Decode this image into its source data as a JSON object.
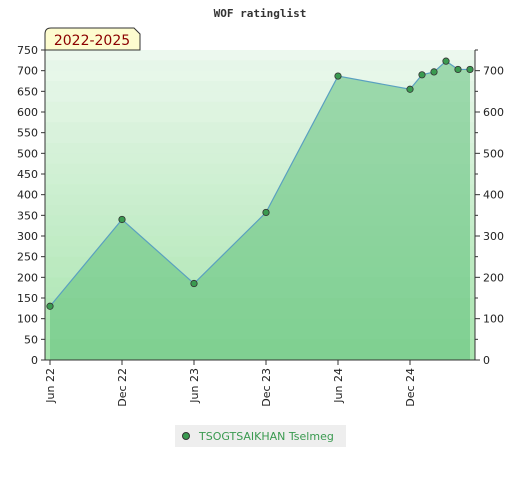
{
  "chart_data": {
    "type": "area",
    "title": "WOF ratinglist",
    "range_badge": "2022-2025",
    "xlabel": "",
    "ylabel": "",
    "ylim": [
      0,
      750
    ],
    "yticks_left": [
      "0",
      "50",
      "100",
      "150",
      "200",
      "250",
      "300",
      "350",
      "400",
      "450",
      "500",
      "550",
      "600",
      "650",
      "700",
      "750"
    ],
    "yticks_right": [
      "0",
      "100",
      "200",
      "300",
      "400",
      "500",
      "600",
      "700"
    ],
    "x_tick_labels": [
      "Jun 22",
      "Dec 22",
      "Jun 23",
      "Dec 23",
      "Jun 24",
      "Dec 24"
    ],
    "x_tick_months": [
      0,
      6,
      12,
      18,
      24,
      30
    ],
    "series": [
      {
        "name": "TSOGTSAIKHAN Tselmeg",
        "color": "#3a9a50",
        "points": [
          {
            "month": 0,
            "value": 130
          },
          {
            "month": 6,
            "value": 340
          },
          {
            "month": 12,
            "value": 185
          },
          {
            "month": 18,
            "value": 357
          },
          {
            "month": 24,
            "value": 687
          },
          {
            "month": 30,
            "value": 655
          },
          {
            "month": 31,
            "value": 690
          },
          {
            "month": 32,
            "value": 697
          },
          {
            "month": 33,
            "value": 723
          },
          {
            "month": 34,
            "value": 703
          },
          {
            "month": 35,
            "value": 703
          }
        ]
      }
    ],
    "grid": true,
    "legend_position": "bottom-center",
    "colors": {
      "area_fill": "#5fbf7a",
      "line": "#5aa0c0",
      "marker": "#3a9a50",
      "badge_bg": "#fdfccf",
      "badge_text": "#8b0000"
    }
  }
}
